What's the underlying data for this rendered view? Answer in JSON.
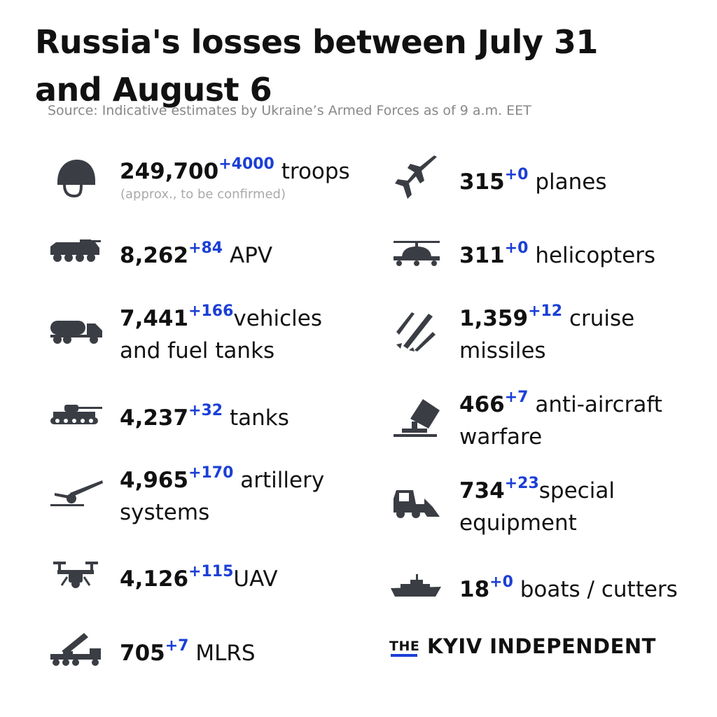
{
  "title": "Russia's losses between July 31 and August 6",
  "source": "Source: Indicative estimates by Ukraine’s Armed Forces as of 9 a.m. EET",
  "accent_color": "#1a3fd6",
  "icon_color": "#3a3d44",
  "items": [
    {
      "icon": "helmet-icon",
      "value": "249,700",
      "delta": "+4000",
      "label": " troops",
      "note": "(approx., to be confirmed)"
    },
    {
      "icon": "apv-icon",
      "value": "8,262",
      "delta": "+84",
      "label": " APV"
    },
    {
      "icon": "fuel-truck-icon",
      "value": "7,441",
      "delta": "+166",
      "label": "vehicles",
      "label2": "and fuel tanks"
    },
    {
      "icon": "tank-icon",
      "value": "4,237",
      "delta": "+32",
      "label": " tanks"
    },
    {
      "icon": "artillery-icon",
      "value": "4,965",
      "delta": "+170",
      "label": " artillery",
      "label2": "systems"
    },
    {
      "icon": "drone-icon",
      "value": "4,126",
      "delta": "+115",
      "label": "UAV"
    },
    {
      "icon": "mlrs-icon",
      "value": "705",
      "delta": "+7",
      "label": " MLRS"
    },
    {
      "icon": "plane-icon",
      "value": "315",
      "delta": "+0",
      "label": " planes"
    },
    {
      "icon": "helicopter-icon",
      "value": "311",
      "delta": "+0",
      "label": " helicopters"
    },
    {
      "icon": "missile-icon",
      "value": "1,359",
      "delta": "+12",
      "label": " cruise",
      "label2": "missiles"
    },
    {
      "icon": "anti-aircraft-icon",
      "value": "466",
      "delta": "+7",
      "label": " anti-aircraft",
      "label2": "warfare"
    },
    {
      "icon": "bulldozer-icon",
      "value": "734",
      "delta": "+23",
      "label": "special",
      "label2": "equipment"
    },
    {
      "icon": "ship-icon",
      "value": "18",
      "delta": "+0",
      "label": " boats / cutters"
    }
  ],
  "brand": {
    "prefix": "THE",
    "name": "KYIV INDEPENDENT"
  }
}
